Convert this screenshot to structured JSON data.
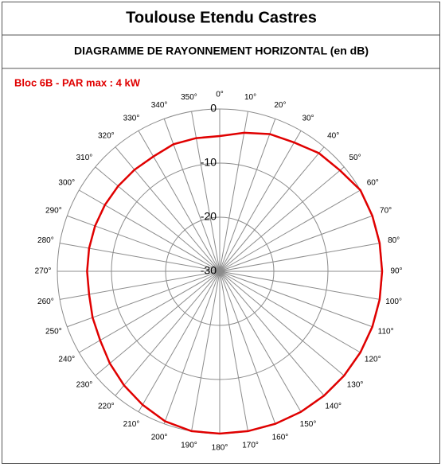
{
  "chart_data": {
    "type": "polar",
    "title": "Toulouse Etendu Castres",
    "subtitle": "DIAGRAMME DE RAYONNEMENT HORIZONTAL  (en dB)",
    "series_label": "Bloc 6B - PAR max : 4 kW",
    "color": "#e00000",
    "rlim": [
      -30,
      0
    ],
    "rticks": [
      -30,
      -20,
      -10,
      0
    ],
    "thetaticks": [
      {
        "value": 0,
        "label": "0°"
      },
      {
        "value": 10,
        "label": "10°"
      },
      {
        "value": 20,
        "label": "20°"
      },
      {
        "value": 30,
        "label": "30°"
      },
      {
        "value": 40,
        "label": "40°"
      },
      {
        "value": 50,
        "label": "50°"
      },
      {
        "value": 60,
        "label": "60°"
      },
      {
        "value": 70,
        "label": "70°"
      },
      {
        "value": 80,
        "label": "80°"
      },
      {
        "value": 90,
        "label": "90°"
      },
      {
        "value": 100,
        "label": "100°"
      },
      {
        "value": 110,
        "label": "110°"
      },
      {
        "value": 120,
        "label": "120°"
      },
      {
        "value": 130,
        "label": "130°"
      },
      {
        "value": 140,
        "label": "140°"
      },
      {
        "value": 150,
        "label": "150°"
      },
      {
        "value": 160,
        "label": "160°"
      },
      {
        "value": 170,
        "label": "170°"
      },
      {
        "value": 180,
        "label": "180°"
      },
      {
        "value": 190,
        "label": "190°"
      },
      {
        "value": 200,
        "label": "200°"
      },
      {
        "value": 210,
        "label": "210°"
      },
      {
        "value": 220,
        "label": "220°"
      },
      {
        "value": 230,
        "label": "230°"
      },
      {
        "value": 240,
        "label": "240°"
      },
      {
        "value": 250,
        "label": "250°"
      },
      {
        "value": 260,
        "label": "260°"
      },
      {
        "value": 270,
        "label": "270°"
      },
      {
        "value": 280,
        "label": "280°"
      },
      {
        "value": 290,
        "label": "290°"
      },
      {
        "value": 300,
        "label": "300°"
      },
      {
        "value": 310,
        "label": "310°"
      },
      {
        "value": 320,
        "label": "320°"
      },
      {
        "value": 330,
        "label": "330°"
      },
      {
        "value": 340,
        "label": "340°"
      },
      {
        "value": 350,
        "label": "350°"
      }
    ],
    "values": [
      -5,
      -4,
      -3,
      -2.5,
      -1.5,
      -1,
      0,
      0,
      0,
      0,
      0,
      0,
      0,
      0,
      0,
      0,
      0,
      0,
      0,
      0,
      -0.5,
      -1.5,
      -2.5,
      -3.5,
      -4.5,
      -5,
      -5.5,
      -5.5,
      -5.5,
      -5.5,
      -5.5,
      -5.5,
      -5.5,
      -5.5,
      -5,
      -5
    ]
  }
}
